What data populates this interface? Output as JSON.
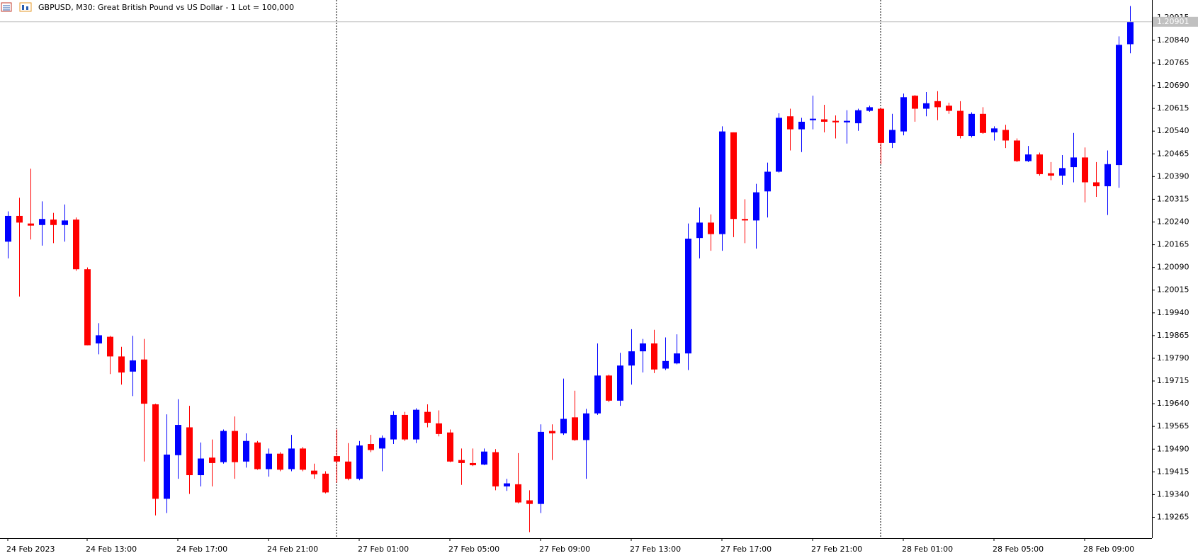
{
  "chart_data": {
    "type": "candlestick",
    "title": "GBPUSD, M30:  Great British Pound vs US Dollar - 1 Lot = 100,000",
    "categories": [
      "24 Feb 2023",
      null,
      null,
      null,
      null,
      null,
      null,
      "24 Feb 13:00",
      null,
      null,
      null,
      null,
      null,
      null,
      null,
      "24 Feb 17:00",
      null,
      null,
      null,
      null,
      null,
      null,
      null,
      "24 Feb 21:00",
      null,
      null,
      null,
      null,
      null,
      null,
      null,
      "27 Feb 01:00",
      null,
      null,
      null,
      null,
      null,
      null,
      null,
      "27 Feb 05:00",
      null,
      null,
      null,
      null,
      null,
      null,
      null,
      "27 Feb 09:00",
      null,
      null,
      null,
      null,
      null,
      null,
      null,
      "27 Feb 13:00",
      null,
      null,
      null,
      null,
      null,
      null,
      null,
      "27 Feb 17:00",
      null,
      null,
      null,
      null,
      null,
      null,
      null,
      "27 Feb 21:00",
      null,
      null,
      null,
      null,
      null,
      null,
      null,
      "28 Feb 01:00",
      null,
      null,
      null,
      null,
      null,
      null,
      null,
      "28 Feb 05:00",
      null,
      null,
      null,
      null,
      null,
      null,
      null,
      "28 Feb 09:00",
      null,
      null,
      null,
      null
    ],
    "open": [
      1.20175,
      1.2026,
      1.20235,
      1.2023,
      1.20248,
      1.2023,
      1.20248,
      1.20084,
      1.19839,
      1.19861,
      1.19796,
      1.19746,
      1.19786,
      1.19638,
      1.19326,
      1.1947,
      1.19562,
      1.19404,
      1.19462,
      1.19447,
      1.1955,
      1.19449,
      1.19512,
      1.19424,
      1.19475,
      1.19424,
      1.19492,
      1.19419,
      1.19409,
      1.19467,
      1.19449,
      1.19392,
      1.19507,
      1.19492,
      1.19522,
      1.19603,
      1.19522,
      1.19613,
      1.19575,
      1.19545,
      1.19454,
      1.19444,
      1.19439,
      1.1948,
      1.19367,
      1.19374,
      1.19321,
      1.19309,
      1.1955,
      1.19542,
      1.19595,
      1.1952,
      1.19608,
      1.19733,
      1.1965,
      1.19766,
      1.19813,
      1.19839,
      1.19756,
      1.19773,
      1.19806,
      1.20187,
      1.20238,
      1.202,
      1.20536,
      1.2025,
      1.20245,
      1.20341,
      1.20406,
      1.20589,
      1.20546,
      1.20576,
      1.20579,
      1.20574,
      1.20569,
      1.20566,
      1.20607,
      1.20614,
      1.20501,
      1.20539,
      1.20657,
      1.20614,
      1.20639,
      1.20624,
      1.20607,
      1.20524,
      1.20597,
      1.20536,
      1.20544,
      1.20509,
      1.20441,
      1.20463,
      1.20401,
      1.20393,
      1.20421,
      1.20453,
      1.20371,
      1.20358,
      1.20428,
      1.20827
    ],
    "high": [
      1.20275,
      1.2032,
      1.20416,
      1.20308,
      1.2027,
      1.20298,
      1.20255,
      1.2009,
      1.19906,
      1.19864,
      1.19828,
      1.19864,
      1.19854,
      1.1964,
      1.19605,
      1.19655,
      1.19633,
      1.19512,
      1.19522,
      1.19555,
      1.19598,
      1.19542,
      1.19517,
      1.19492,
      1.1948,
      1.19537,
      1.19497,
      1.19442,
      1.19417,
      1.19555,
      1.1951,
      1.19517,
      1.19537,
      1.19535,
      1.19615,
      1.19613,
      1.19625,
      1.19638,
      1.19618,
      1.19555,
      1.19492,
      1.19492,
      1.19492,
      1.1949,
      1.19392,
      1.19477,
      1.19354,
      1.19572,
      1.19572,
      1.19723,
      1.19683,
      1.19623,
      1.19839,
      1.19736,
      1.19808,
      1.19886,
      1.19854,
      1.19884,
      1.19859,
      1.19869,
      1.20235,
      1.20288,
      1.20265,
      1.20556,
      1.20536,
      1.20315,
      1.20366,
      1.20436,
      1.20599,
      1.20614,
      1.20584,
      1.20657,
      1.20627,
      1.20592,
      1.20609,
      1.20614,
      1.20624,
      1.20617,
      1.20597,
      1.20664,
      1.20659,
      1.20669,
      1.20672,
      1.20634,
      1.20639,
      1.20602,
      1.20619,
      1.20556,
      1.20561,
      1.20516,
      1.20491,
      1.20469,
      1.20438,
      1.20461,
      1.20534,
      1.20486,
      1.20438,
      1.20476,
      1.20853,
      1.20953
    ],
    "low": [
      1.2012,
      1.19994,
      1.20182,
      1.20162,
      1.2017,
      1.20175,
      1.20079,
      1.19833,
      1.19803,
      1.19738,
      1.19703,
      1.19665,
      1.19449,
      1.19271,
      1.19279,
      1.19392,
      1.19342,
      1.19367,
      1.19367,
      1.19442,
      1.19392,
      1.19429,
      1.19422,
      1.19399,
      1.19417,
      1.19417,
      1.19417,
      1.19392,
      1.19344,
      1.19379,
      1.19387,
      1.19387,
      1.1948,
      1.19417,
      1.19507,
      1.19517,
      1.1951,
      1.19562,
      1.19532,
      1.19447,
      1.19372,
      1.19434,
      1.19437,
      1.19354,
      1.19352,
      1.19311,
      1.19216,
      1.19279,
      1.19454,
      1.19537,
      1.19517,
      1.19392,
      1.19603,
      1.19645,
      1.19633,
      1.19703,
      1.19743,
      1.19741,
      1.19751,
      1.1977,
      1.19751,
      1.2012,
      1.20145,
      1.20145,
      1.2019,
      1.2017,
      1.20152,
      1.20255,
      1.20403,
      1.20476,
      1.20471,
      1.20546,
      1.20536,
      1.20516,
      1.20499,
      1.20541,
      1.20604,
      1.20431,
      1.20484,
      1.20526,
      1.20571,
      1.20589,
      1.20576,
      1.20597,
      1.20516,
      1.20519,
      1.20531,
      1.20509,
      1.20484,
      1.20438,
      1.20438,
      1.20393,
      1.20378,
      1.20363,
      1.20371,
      1.20305,
      1.20323,
      1.20263,
      1.20353,
      1.20797
    ],
    "close": [
      1.2026,
      1.20238,
      1.20228,
      1.2025,
      1.2023,
      1.20245,
      1.20084,
      1.19833,
      1.19866,
      1.19796,
      1.19743,
      1.19783,
      1.1964,
      1.19326,
      1.19472,
      1.1957,
      1.19404,
      1.19459,
      1.19444,
      1.1955,
      1.19447,
      1.19517,
      1.19424,
      1.19475,
      1.19422,
      1.19492,
      1.19422,
      1.19407,
      1.19347,
      1.19449,
      1.19392,
      1.19502,
      1.19487,
      1.19527,
      1.19603,
      1.19522,
      1.1962,
      1.19577,
      1.1954,
      1.19449,
      1.19444,
      1.19437,
      1.19482,
      1.19367,
      1.19377,
      1.19314,
      1.19309,
      1.19547,
      1.19542,
      1.1959,
      1.1952,
      1.19608,
      1.19733,
      1.1965,
      1.19766,
      1.19813,
      1.19839,
      1.19753,
      1.19781,
      1.19806,
      1.20185,
      1.20238,
      1.202,
      1.20539,
      1.2025,
      1.20245,
      1.20338,
      1.20406,
      1.20584,
      1.20546,
      1.20571,
      1.20581,
      1.20571,
      1.20569,
      1.20574,
      1.20609,
      1.20619,
      1.20501,
      1.20544,
      1.20652,
      1.20614,
      1.20632,
      1.20619,
      1.20607,
      1.20524,
      1.20597,
      1.20534,
      1.20549,
      1.20509,
      1.20441,
      1.20463,
      1.20398,
      1.20393,
      1.20418,
      1.20453,
      1.20371,
      1.20358,
      1.20431,
      1.20825,
      1.20901
    ],
    "up_color": "#0000ff",
    "down_color": "#ff0000",
    "current_price": 1.20901,
    "ylim": [
      1.19196,
      1.20973
    ],
    "yticks": [
      1.20915,
      {
        "value": 1.2084,
        "label": "1.20840"
      },
      1.20765,
      {
        "value": 1.2069,
        "label": "1.20690"
      },
      1.20615,
      {
        "value": 1.2054,
        "label": "1.20540"
      },
      1.20465,
      {
        "value": 1.2039,
        "label": "1.20390"
      },
      1.20315,
      {
        "value": 1.2024,
        "label": "1.20240"
      },
      1.20165,
      {
        "value": 1.2009,
        "label": "1.20090"
      },
      1.20015,
      {
        "value": 1.1994,
        "label": "1.19940"
      },
      1.19865,
      {
        "value": 1.1979,
        "label": "1.19790"
      },
      1.19715,
      {
        "value": 1.1964,
        "label": "1.19640"
      },
      1.19565,
      {
        "value": 1.1949,
        "label": "1.19490"
      },
      1.19415,
      {
        "value": 1.1934,
        "label": "1.19340"
      },
      1.19265
    ],
    "grid": false
  }
}
